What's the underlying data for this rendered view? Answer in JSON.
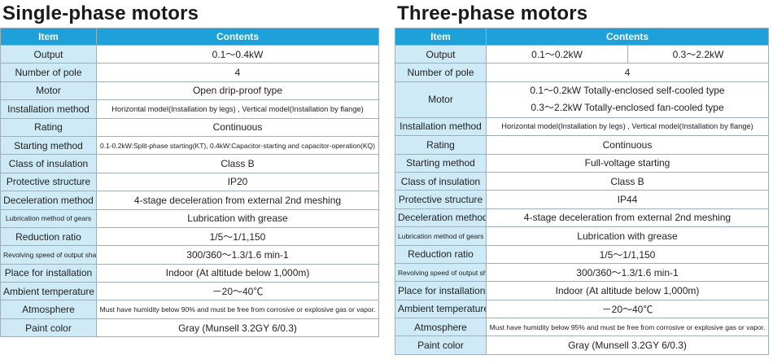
{
  "single": {
    "title": "Single-phase motors",
    "header": {
      "item": "Item",
      "contents": "Contents"
    },
    "rows": [
      {
        "label": "Output",
        "value": "0.1～0.4kW"
      },
      {
        "label": "Number of pole",
        "value": "4"
      },
      {
        "label": "Motor",
        "value": "Open drip-proof type"
      },
      {
        "label": "Installation method",
        "value": "Horizontal model(Installation by legs) , Vertical model(Installation by flange)"
      },
      {
        "label": "Rating",
        "value": "Continuous"
      },
      {
        "label": "Starting method",
        "value": "0.1-0.2kW:Split-phase starting(KT), 0.4kW:Capacitor-starting and capacitor-operation(KQ)"
      },
      {
        "label": "Class  of  insulation",
        "value": "Class B"
      },
      {
        "label": "Protective structure",
        "value": "IP20"
      },
      {
        "label": "Deceleration method",
        "value": "4-stage deceleration from external 2nd meshing"
      },
      {
        "label": "Lubrication method of gears",
        "value": "Lubrication with grease"
      },
      {
        "label": "Reduction ratio",
        "value": "1/5～1/1,150"
      },
      {
        "label": "Revolving speed of output shaft",
        "value": "300/360～1.3/1.6 min-1"
      },
      {
        "label": "Place for installation",
        "value": "Indoor (At altitude below 1,000m)"
      },
      {
        "label": "Ambient temperature",
        "value": "－20～40℃"
      },
      {
        "label": "Atmosphere",
        "value": "Must have humidity below 90% and must be free from corrosive or explosive gas or vapor."
      },
      {
        "label": "Paint color",
        "value": "Gray (Munsell 3.2GY 6/0.3)"
      }
    ]
  },
  "three": {
    "title": "Three-phase motors",
    "header": {
      "item": "Item",
      "contents": "Contents"
    },
    "output": {
      "label": "Output",
      "value_a": "0.1～0.2kW",
      "value_b": "0.3～2.2kW"
    },
    "pole": {
      "label": "Number of pole",
      "value": "4"
    },
    "motor": {
      "label": "Motor",
      "line_a": "0.1～0.2kW  Totally-enclosed self-cooled type",
      "line_b": "0.3～2.2kW  Totally-enclosed fan-cooled type"
    },
    "rows": [
      {
        "label": "Installation method",
        "value": "Horizontal model(Installation by legs) , Vertical model(Installation by flange)"
      },
      {
        "label": "Rating",
        "value": "Continuous"
      },
      {
        "label": "Starting method",
        "value": "Full-voltage starting"
      },
      {
        "label": "Class  of  insulation",
        "value": "Class B"
      },
      {
        "label": "Protective structure",
        "value": "IP44"
      },
      {
        "label": "Deceleration method",
        "value": "4-stage deceleration from external 2nd meshing"
      },
      {
        "label": "Lubrication method of gears",
        "value": "Lubrication with grease"
      },
      {
        "label": "Reduction ratio",
        "value": "1/5～1/1,150"
      },
      {
        "label": "Revolving speed of output shaft",
        "value": "300/360～1.3/1.6 min-1"
      },
      {
        "label": "Place for installation",
        "value": "Indoor (At altitude below 1,000m)"
      },
      {
        "label": "Ambient temperature",
        "value": "－20～40℃"
      },
      {
        "label": "Atmosphere",
        "value": "Must have humidity below 95% and must be free from corrosive or explosive gas or vapor."
      },
      {
        "label": "Paint color",
        "value": "Gray (Munsell 3.2GY 6/0.3)"
      }
    ]
  }
}
